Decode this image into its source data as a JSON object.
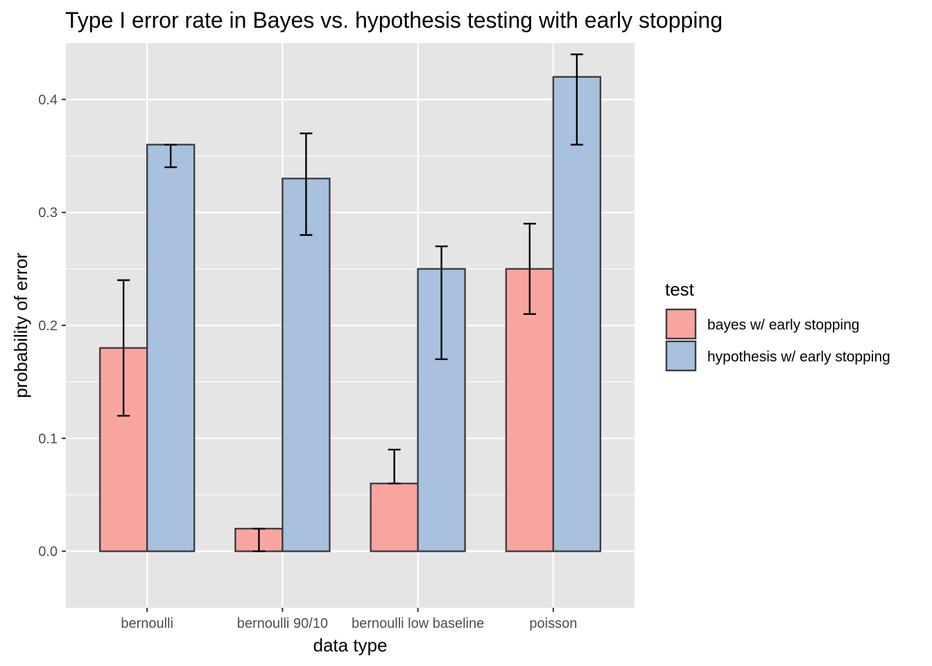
{
  "chart_data": {
    "type": "bar",
    "title": "Type I error rate in Bayes vs. hypothesis testing with early stopping",
    "xlabel": "data type",
    "ylabel": "probability of error",
    "categories": [
      "bernoulli",
      "bernoulli 90/10",
      "bernoulli low baseline",
      "poisson"
    ],
    "ylim": [
      -0.05,
      0.45
    ],
    "yticks": [
      0.0,
      0.1,
      0.2,
      0.3,
      0.4
    ],
    "ytick_labels": [
      "0.0",
      "0.1",
      "0.2",
      "0.3",
      "0.4"
    ],
    "grid": true,
    "legend": {
      "title": "test",
      "position": "right"
    },
    "series": [
      {
        "name": "bayes w/ early stopping",
        "color": "#F8A5A0",
        "values": [
          0.18,
          0.02,
          0.06,
          0.25
        ],
        "error_low": [
          0.12,
          0.0,
          0.06,
          0.21
        ],
        "error_high": [
          0.24,
          0.02,
          0.09,
          0.29
        ]
      },
      {
        "name": "hypothesis w/ early stopping",
        "color": "#A7C1DE",
        "values": [
          0.36,
          0.33,
          0.25,
          0.42
        ],
        "error_low": [
          0.34,
          0.28,
          0.17,
          0.36
        ],
        "error_high": [
          0.36,
          0.37,
          0.27,
          0.44
        ]
      }
    ],
    "colors": {
      "panel_background": "#E5E5E5",
      "grid": "#FFFFFF",
      "bar_outline": "#3D3D3D",
      "error_bar": "#000000"
    }
  }
}
